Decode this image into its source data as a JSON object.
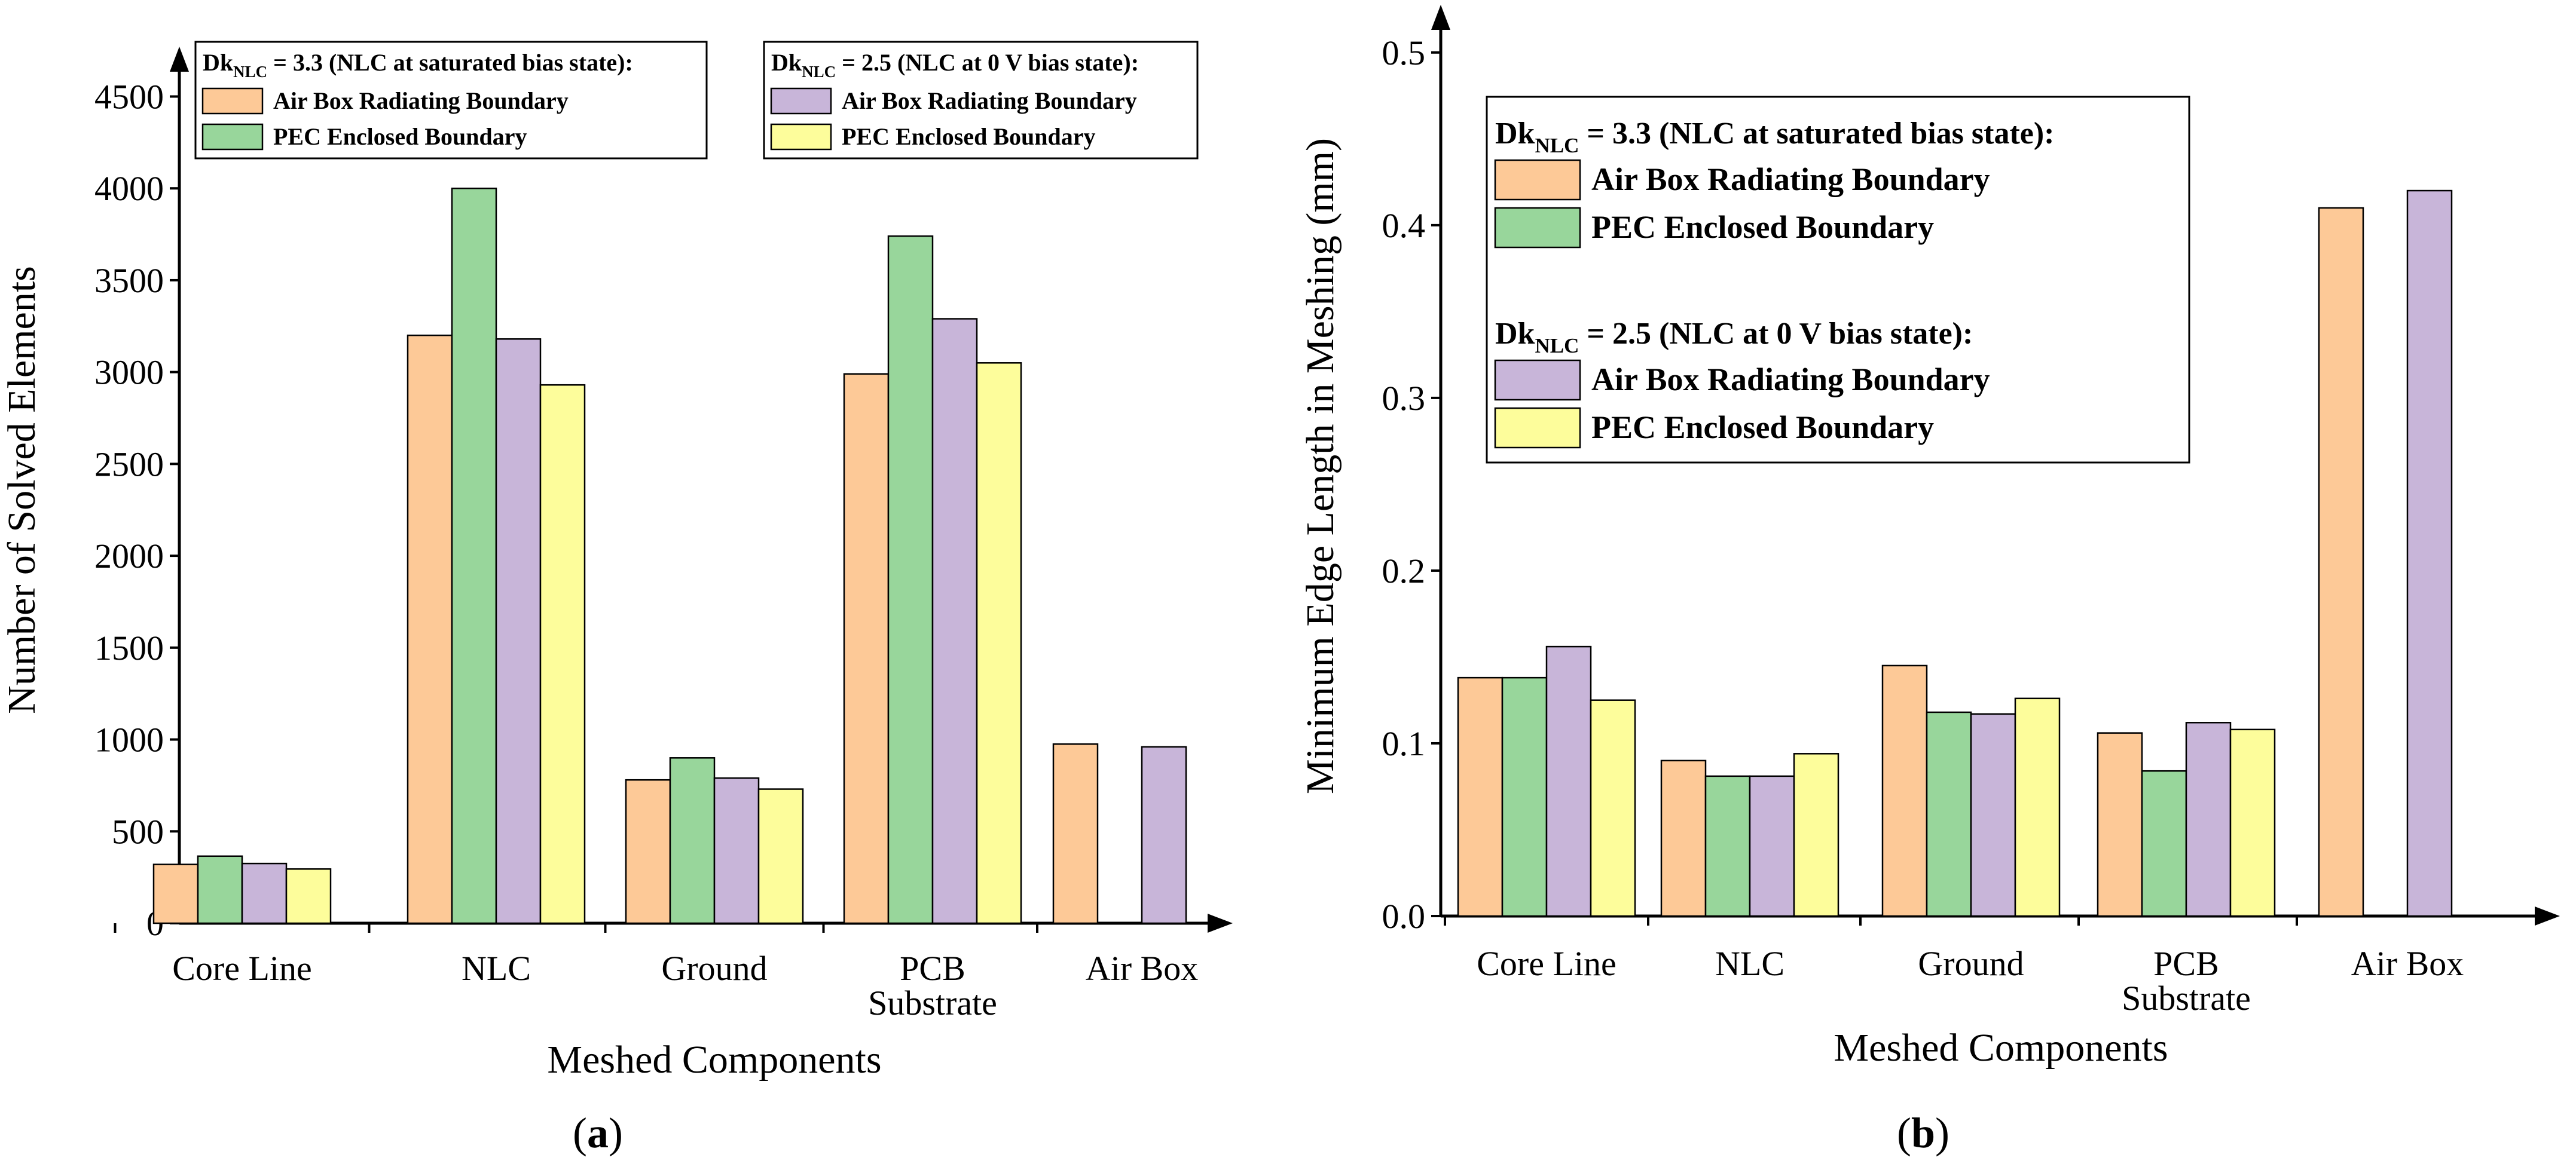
{
  "chart_data": [
    {
      "type": "bar",
      "panel_label": "(a)",
      "categories": [
        "Core Line",
        "NLC",
        "Ground",
        "PCB Substrate",
        "Air Box"
      ],
      "category_lines": [
        [
          "Core Line"
        ],
        [
          "NLC"
        ],
        [
          "Ground"
        ],
        [
          "PCB",
          "Substrate"
        ],
        [
          "Air Box"
        ]
      ],
      "series": [
        {
          "name": "Air Box Radiating Boundary",
          "group": "Dk = 3.3",
          "values": [
            320,
            3200,
            780,
            2990,
            975
          ]
        },
        {
          "name": "PEC Enclosed Boundary",
          "group": "Dk = 3.3",
          "values": [
            365,
            4000,
            900,
            3740,
            null
          ]
        },
        {
          "name": "Air Box Radiating Boundary",
          "group": "Dk = 2.5",
          "values": [
            325,
            3180,
            790,
            3290,
            960
          ]
        },
        {
          "name": "PEC Enclosed Boundary",
          "group": "Dk = 2.5",
          "values": [
            295,
            2930,
            730,
            3050,
            null
          ]
        }
      ],
      "ylabel": "Number of Solved Elements",
      "xlabel": "Meshed Components",
      "ylim": [
        0,
        4700
      ],
      "yticks": [
        "0",
        "500",
        "1000",
        "1500",
        "2000",
        "2500",
        "3000",
        "3500",
        "4000",
        "4500"
      ],
      "legend_placement": "top",
      "legend": [
        {
          "dk": "Dk",
          "sub": "NLC",
          "rest": " = 3.3 (NLC at saturated bias state):",
          "items": [
            "Air Box Radiating Boundary",
            "PEC Enclosed Boundary"
          ]
        },
        {
          "dk": "Dk",
          "sub": "NLC",
          "rest": " = 2.5 (NLC at 0 V bias state):",
          "items": [
            "Air Box Radiating Boundary",
            "PEC Enclosed Boundary"
          ]
        }
      ]
    },
    {
      "type": "bar",
      "panel_label": "(b)",
      "categories": [
        "Core Line",
        "NLC",
        "Ground",
        "PCB Substrate",
        "Air Box"
      ],
      "category_lines": [
        [
          "Core Line"
        ],
        [
          "NLC"
        ],
        [
          "Ground"
        ],
        [
          "PCB",
          "Substrate"
        ],
        [
          "Air Box"
        ]
      ],
      "series": [
        {
          "name": "Air Box Radiating Boundary",
          "group": "Dk = 3.3",
          "values": [
            0.138,
            0.09,
            0.145,
            0.106,
            0.41
          ]
        },
        {
          "name": "PEC Enclosed Boundary",
          "group": "Dk = 3.3",
          "values": [
            0.138,
            0.081,
            0.118,
            0.084,
            null
          ]
        },
        {
          "name": "Air Box Radiating Boundary",
          "group": "Dk = 2.5",
          "values": [
            0.156,
            0.081,
            0.117,
            0.112,
            0.42
          ]
        },
        {
          "name": "PEC Enclosed Boundary",
          "group": "Dk = 2.5",
          "values": [
            0.125,
            0.094,
            0.126,
            0.108,
            null
          ]
        }
      ],
      "ylabel": "Minimum Edge Length in Meshing (mm)",
      "xlabel": "Meshed Components",
      "ylim": [
        0,
        0.52
      ],
      "yticks": [
        "0.0",
        "0.1",
        "0.2",
        "0.3",
        "0.4",
        "0.5"
      ],
      "legend_placement": "top-right",
      "legend": [
        {
          "dk": "Dk",
          "sub": "NLC",
          "rest": " = 3.3 (NLC at saturated bias state):",
          "items": [
            "Air Box Radiating Boundary",
            "PEC Enclosed Boundary"
          ]
        },
        {
          "dk": "Dk",
          "sub": "NLC",
          "rest": " = 2.5 (NLC at 0 V bias state):",
          "items": [
            "Air Box Radiating Boundary",
            "PEC Enclosed Boundary"
          ]
        }
      ]
    }
  ],
  "colors": {
    "air_box_3_3": "#fdc997",
    "pec_3_3": "#98d69b",
    "air_box_2_5": "#c8b5d9",
    "pec_2_5": "#fdfd9b"
  }
}
